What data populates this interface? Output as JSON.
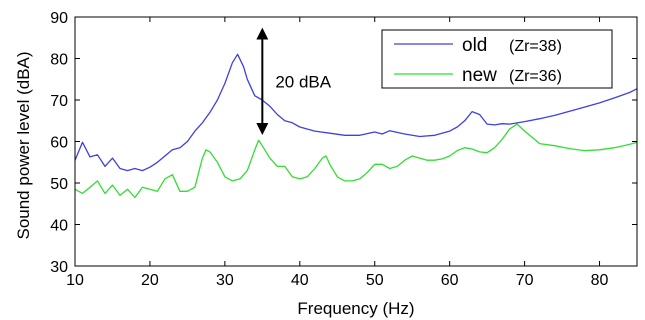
{
  "chart_data": {
    "type": "line",
    "xlabel": "Frequency (Hz)",
    "ylabel": "Sound power level  (dBA)",
    "xlim": [
      10,
      85
    ],
    "ylim": [
      30,
      90
    ],
    "xticks": [
      "10",
      "20",
      "30",
      "40",
      "50",
      "60",
      "70",
      "80"
    ],
    "yticks": [
      "30",
      "40",
      "50",
      "60",
      "70",
      "80",
      "90"
    ],
    "grid": false,
    "legend_position": "top-right",
    "series": [
      {
        "name": "old",
        "name_suffix": "(Zr=38)",
        "color": "#4040e0",
        "x": [
          10,
          11,
          12,
          13,
          14,
          15,
          16,
          17,
          18,
          19,
          20,
          21,
          22,
          23,
          24,
          25,
          26,
          27,
          28,
          29,
          30,
          31,
          31.7,
          32.5,
          33,
          34,
          35,
          36,
          37,
          38,
          39,
          40,
          42,
          44,
          46,
          48,
          50,
          51,
          52,
          54,
          56,
          58,
          60,
          61,
          62,
          63,
          64,
          65,
          66,
          67,
          68,
          70,
          72,
          74,
          76,
          78,
          80,
          82,
          84,
          85
        ],
        "y": [
          55.5,
          59.8,
          56.3,
          56.8,
          54,
          56,
          53.5,
          53,
          53.5,
          53,
          53.8,
          55,
          56.5,
          58,
          58.5,
          60,
          62.5,
          64.5,
          67,
          70,
          74,
          79,
          81,
          78,
          75,
          71,
          70,
          68.5,
          66.5,
          65,
          64.5,
          63.5,
          62.5,
          62,
          61.5,
          61.5,
          62.3,
          61.8,
          62.6,
          61.8,
          61.2,
          61.5,
          62.5,
          63.5,
          65,
          67.2,
          66.5,
          64.2,
          64,
          64.3,
          64.2,
          64.8,
          65.5,
          66.3,
          67.3,
          68.3,
          69.3,
          70.5,
          71.8,
          72.7
        ]
      },
      {
        "name": "new",
        "name_suffix": "(Zr=36)",
        "color": "#33dd33",
        "x": [
          10,
          11,
          12,
          13,
          14,
          15,
          16,
          17,
          18,
          19,
          20,
          21,
          22,
          23,
          24,
          25,
          26,
          27,
          27.5,
          28,
          29,
          30,
          31,
          32,
          33,
          34,
          34.5,
          35,
          36,
          37,
          38,
          39,
          40,
          41,
          42,
          43,
          43.5,
          44,
          45,
          46,
          47,
          48,
          49,
          50,
          51,
          52,
          53,
          54,
          55,
          56,
          57,
          58,
          59,
          60,
          61,
          62,
          63,
          64,
          65,
          66,
          67,
          68,
          69,
          70,
          71,
          72,
          74,
          76,
          78,
          80,
          82,
          84,
          85
        ],
        "y": [
          48.5,
          47.5,
          49,
          50.5,
          47.5,
          49.5,
          47,
          48.5,
          46.5,
          49,
          48.5,
          48,
          51,
          52,
          48,
          48,
          49,
          56,
          58,
          57.5,
          55,
          51.5,
          50.5,
          51,
          53,
          58,
          60.3,
          59,
          56,
          54,
          54,
          51.5,
          51,
          51.5,
          53.5,
          56,
          56.5,
          54.5,
          51.5,
          50.5,
          50.5,
          51,
          52.5,
          54.5,
          54.5,
          53.5,
          54,
          55.5,
          56.5,
          56,
          55.5,
          55.5,
          55.8,
          56.5,
          57.8,
          58.5,
          58.2,
          57.5,
          57.3,
          58.5,
          60.5,
          63,
          64.2,
          62.5,
          61,
          59.5,
          59,
          58.3,
          57.8,
          58,
          58.5,
          59.3,
          59.8
        ]
      }
    ],
    "annotation": {
      "text": "20 dBA",
      "x": 35,
      "y_top": 86,
      "y_bottom": 63,
      "text_y": 74.5
    }
  }
}
